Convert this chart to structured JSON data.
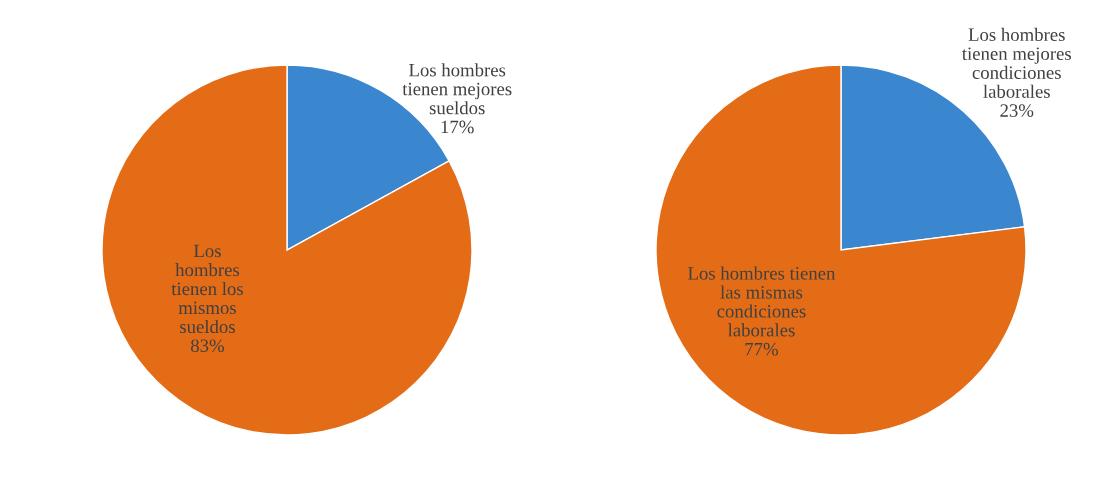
{
  "chart_data": [
    {
      "type": "pie",
      "categories": [
        "Los hombres\ntienen mejores\nsueldos",
        "Los\nhombres\ntienen los\nmismos\nsueldos"
      ],
      "values": [
        17,
        83
      ],
      "colors": [
        "#3a86cf",
        "#e46c17"
      ],
      "value_labels": [
        "17%",
        "83%"
      ]
    },
    {
      "type": "pie",
      "categories": [
        "Los hombres\ntienen mejores\ncondiciones\nlaborales",
        "Los hombres tienen\nlas mismas\ncondiciones\nlaborales"
      ],
      "values": [
        23,
        77
      ],
      "colors": [
        "#3a86cf",
        "#e46c17"
      ],
      "value_labels": [
        "23%",
        "77%"
      ]
    }
  ]
}
